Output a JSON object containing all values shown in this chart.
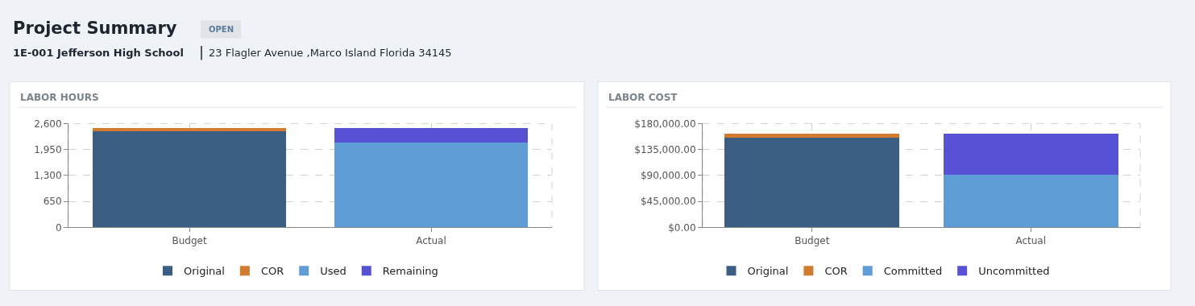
{
  "chart_data": [
    {
      "type": "other",
      "title": "Project Summary",
      "annotations": [
        "OPEN",
        "1E-001 Jefferson High School",
        "23 Flagler Avenue ,Marco Island Florida 34145"
      ]
    },
    {
      "type": "bar",
      "title": "LABOR HOURS",
      "categories": [
        "Budget",
        "Actual"
      ],
      "stacked": true,
      "grid": true,
      "legend": "bottom",
      "ylim": [
        0,
        2600
      ],
      "yticks": [
        0,
        650,
        {
          "value": 1300,
          "label": "1,300"
        },
        {
          "value": 1950,
          "label": "1,950"
        },
        {
          "value": 2600,
          "label": "2,600"
        }
      ],
      "series": [
        {
          "name": "Original",
          "color": "#3a5f82",
          "values": [
            2410,
            null
          ]
        },
        {
          "name": "COR",
          "color": "#d07b2e",
          "values": [
            80,
            null
          ]
        },
        {
          "name": "Used",
          "color": "#5f9dd6",
          "values": [
            null,
            2130
          ]
        },
        {
          "name": "Remaining",
          "color": "#5752d4",
          "values": [
            null,
            360
          ]
        }
      ]
    },
    {
      "type": "bar",
      "title": "LABOR COST",
      "categories": [
        "Budget",
        "Actual"
      ],
      "stacked": true,
      "grid": true,
      "legend": "bottom",
      "ylim": [
        0,
        180000
      ],
      "yticks": [
        {
          "value": 0,
          "label": "$0.00"
        },
        {
          "value": 45000,
          "label": "$45,000.00"
        },
        {
          "value": 90000,
          "label": "$90,000.00"
        },
        {
          "value": 135000,
          "label": "$135,000.00"
        },
        {
          "value": 180000,
          "label": "$180,000.00"
        }
      ],
      "series": [
        {
          "name": "Original",
          "color": "#3a5f82",
          "values": [
            155000,
            null
          ]
        },
        {
          "name": "COR",
          "color": "#d07b2e",
          "values": [
            8000,
            null
          ]
        },
        {
          "name": "Committed",
          "color": "#5f9dd6",
          "values": [
            null,
            92000
          ]
        },
        {
          "name": "Uncommitted",
          "color": "#5752d4",
          "values": [
            null,
            71000
          ]
        }
      ]
    }
  ]
}
